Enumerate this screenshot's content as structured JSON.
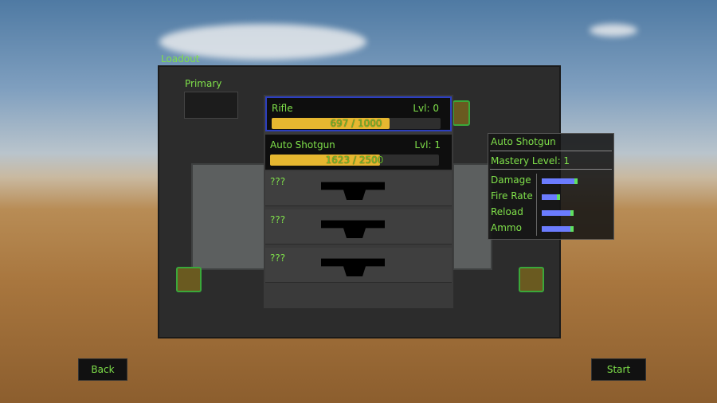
{
  "title": "Loadout",
  "primary_label": "Primary",
  "weapons": [
    {
      "name": "Rifle",
      "level": "Lvl: 0",
      "xp": "697 / 1000",
      "progress": 0.697,
      "selected": true
    },
    {
      "name": "Auto Shotgun",
      "level": "Lvl: 1",
      "xp": "1623 / 2500",
      "progress": 0.649,
      "selected": false
    },
    {
      "name": "???"
    },
    {
      "name": "???"
    },
    {
      "name": "???"
    }
  ],
  "stats": {
    "weapon": "Auto Shotgun",
    "mastery": "Mastery Level: 1",
    "rows": [
      {
        "label": "Damage",
        "value": 0.8
      },
      {
        "label": "Fire Rate",
        "value": 0.38
      },
      {
        "label": "Reload",
        "value": 0.72
      },
      {
        "label": "Ammo",
        "value": 0.72
      }
    ]
  },
  "buttons": {
    "back": "Back",
    "start": "Start"
  },
  "colors": {
    "text": "#7fe04a",
    "xp_fill": "#e6b730",
    "stat_bar": "#6b7cff",
    "selected_border": "#2d3fc0"
  }
}
